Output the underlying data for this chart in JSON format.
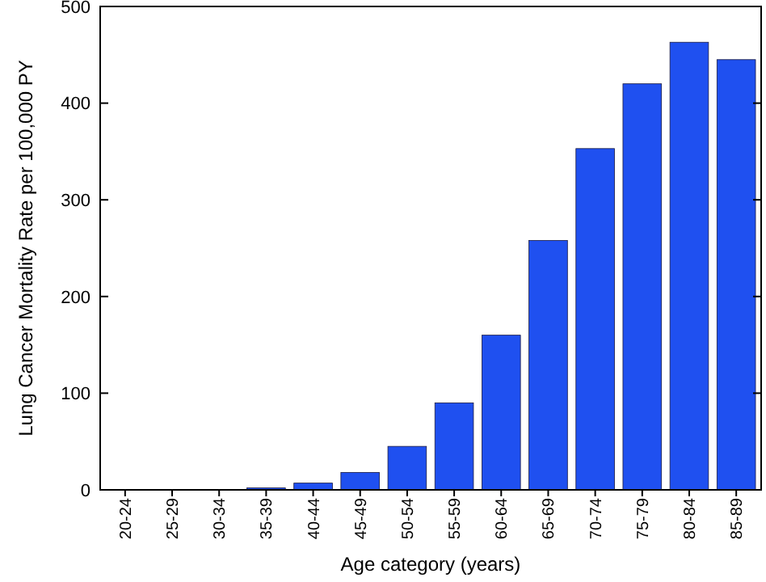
{
  "chart_data": {
    "type": "bar",
    "xlabel": "Age category (years)",
    "ylabel": "Lung Cancer Mortality Rate per 100,000 PY",
    "categories": [
      "20-24",
      "25-29",
      "30-34",
      "35-39",
      "40-44",
      "45-49",
      "50-54",
      "55-59",
      "60-64",
      "65-69",
      "70-74",
      "75-79",
      "80-84",
      "85-89"
    ],
    "values": [
      0,
      0,
      0,
      2,
      7,
      18,
      45,
      90,
      160,
      258,
      353,
      420,
      463,
      445
    ],
    "color": "#1f50f0",
    "ylim": [
      0,
      500
    ],
    "yticks": [
      0,
      100,
      200,
      300,
      400,
      500
    ],
    "grid": false
  }
}
